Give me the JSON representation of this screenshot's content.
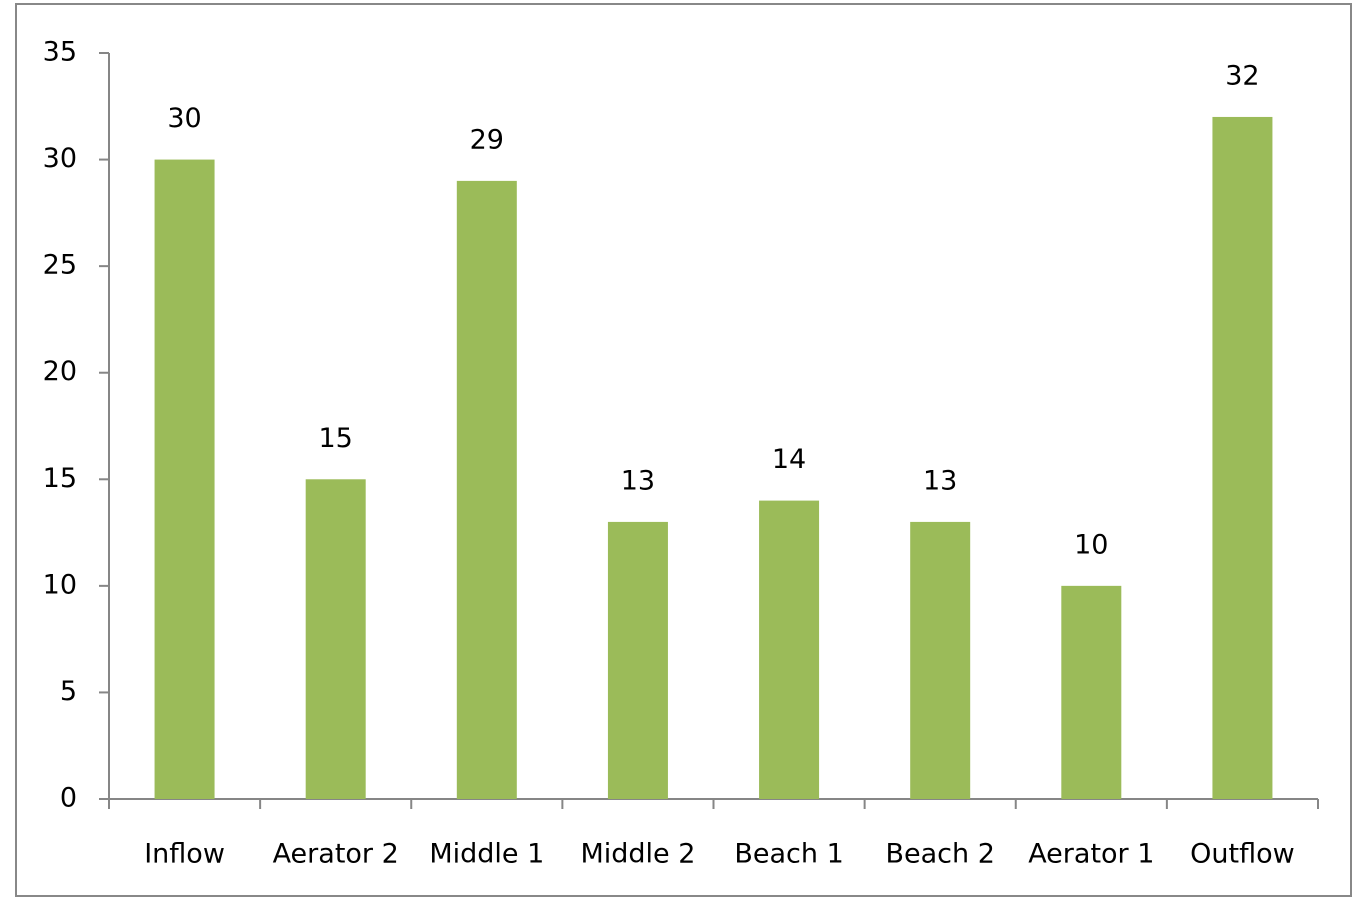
{
  "chart_data": {
    "type": "bar",
    "categories": [
      "Inflow",
      "Aerator 2",
      "Middle 1",
      "Middle 2",
      "Beach 1",
      "Beach 2",
      "Aerator 1",
      "Outflow"
    ],
    "values": [
      30,
      15,
      29,
      13,
      14,
      13,
      10,
      32
    ],
    "color": "#9bbb59",
    "ylim": [
      0,
      35
    ],
    "yticks": [
      0,
      5,
      10,
      15,
      20,
      25,
      30,
      35
    ],
    "grid": false
  }
}
